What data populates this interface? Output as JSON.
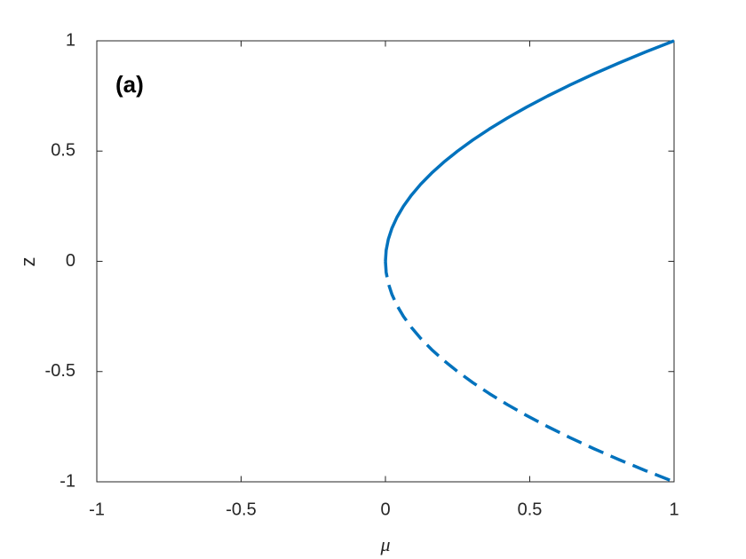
{
  "chart_data": {
    "type": "line",
    "annotation": "(a)",
    "x_label": "μ",
    "y_label": "z",
    "xlim": [
      -1,
      1
    ],
    "ylim": [
      -1,
      1
    ],
    "xticks": [
      -1,
      -0.5,
      0,
      0.5,
      1
    ],
    "yticks": [
      -1,
      -0.5,
      0,
      0.5,
      1
    ],
    "box": true,
    "series": [
      {
        "color": "#0072bd",
        "style": "solid",
        "x": [
          0,
          0.0025,
          0.01,
          0.0225,
          0.04,
          0.0625,
          0.09,
          0.1225,
          0.16,
          0.2025,
          0.25,
          0.3025,
          0.36,
          0.4225,
          0.49,
          0.5625,
          0.64,
          0.7225,
          0.81,
          0.9025,
          1
        ],
        "values": [
          0,
          0.05,
          0.1,
          0.15,
          0.2,
          0.25,
          0.3,
          0.35,
          0.4,
          0.45,
          0.5,
          0.55,
          0.6,
          0.65,
          0.7,
          0.75,
          0.8,
          0.85,
          0.9,
          0.95,
          1
        ]
      },
      {
        "color": "#0072bd",
        "style": "dashed",
        "x": [
          0,
          0.0025,
          0.01,
          0.0225,
          0.04,
          0.0625,
          0.09,
          0.1225,
          0.16,
          0.2025,
          0.25,
          0.3025,
          0.36,
          0.4225,
          0.49,
          0.5625,
          0.64,
          0.7225,
          0.81,
          0.9025,
          1
        ],
        "values": [
          0,
          -0.05,
          -0.1,
          -0.15,
          -0.2,
          -0.25,
          -0.3,
          -0.35,
          -0.4,
          -0.45,
          -0.5,
          -0.55,
          -0.6,
          -0.65,
          -0.7,
          -0.75,
          -0.8,
          -0.85,
          -0.9,
          -0.95,
          -1
        ]
      }
    ]
  }
}
